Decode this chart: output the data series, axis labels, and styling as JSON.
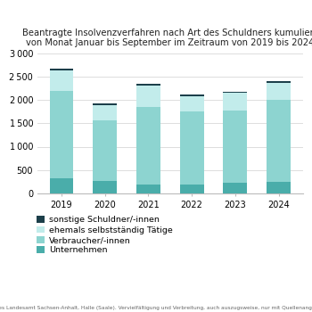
{
  "title": "Beantragte Insolvenzverfahren nach Art des Schuldners kumuliert\nvon Monat Januar bis September im Zeitraum von 2019 bis 2024",
  "years": [
    "2019",
    "2020",
    "2021",
    "2022",
    "2023",
    "2024"
  ],
  "categories": [
    "Unternehmen",
    "Verbraucher/-innen",
    "ehemals selbstständig Tätige",
    "sonstige Schuldner/-innen"
  ],
  "values": [
    [
      320,
      265,
      190,
      200,
      230,
      248
    ],
    [
      1870,
      1290,
      1660,
      1555,
      1545,
      1755
    ],
    [
      445,
      330,
      450,
      330,
      375,
      355
    ],
    [
      30,
      30,
      40,
      30,
      28,
      35
    ]
  ],
  "colors": [
    "#4aadaa",
    "#8dd4d0",
    "#c2eceb",
    "#1c3f4a"
  ],
  "ylim": [
    0,
    3000
  ],
  "yticks": [
    0,
    500,
    1000,
    1500,
    2000,
    2500,
    3000
  ],
  "footer": "© Statistisches Landesamt Sachsen-Anhalt, Halle (Saale). Vervielfältigung und Verbreitung, auch auszugsweise, nur mit Quellenangabe gestattet",
  "background_color": "#ffffff",
  "bar_width": 0.55,
  "title_fontsize": 7.2,
  "tick_fontsize": 7,
  "legend_fontsize": 6.8,
  "footer_fontsize": 4.2
}
